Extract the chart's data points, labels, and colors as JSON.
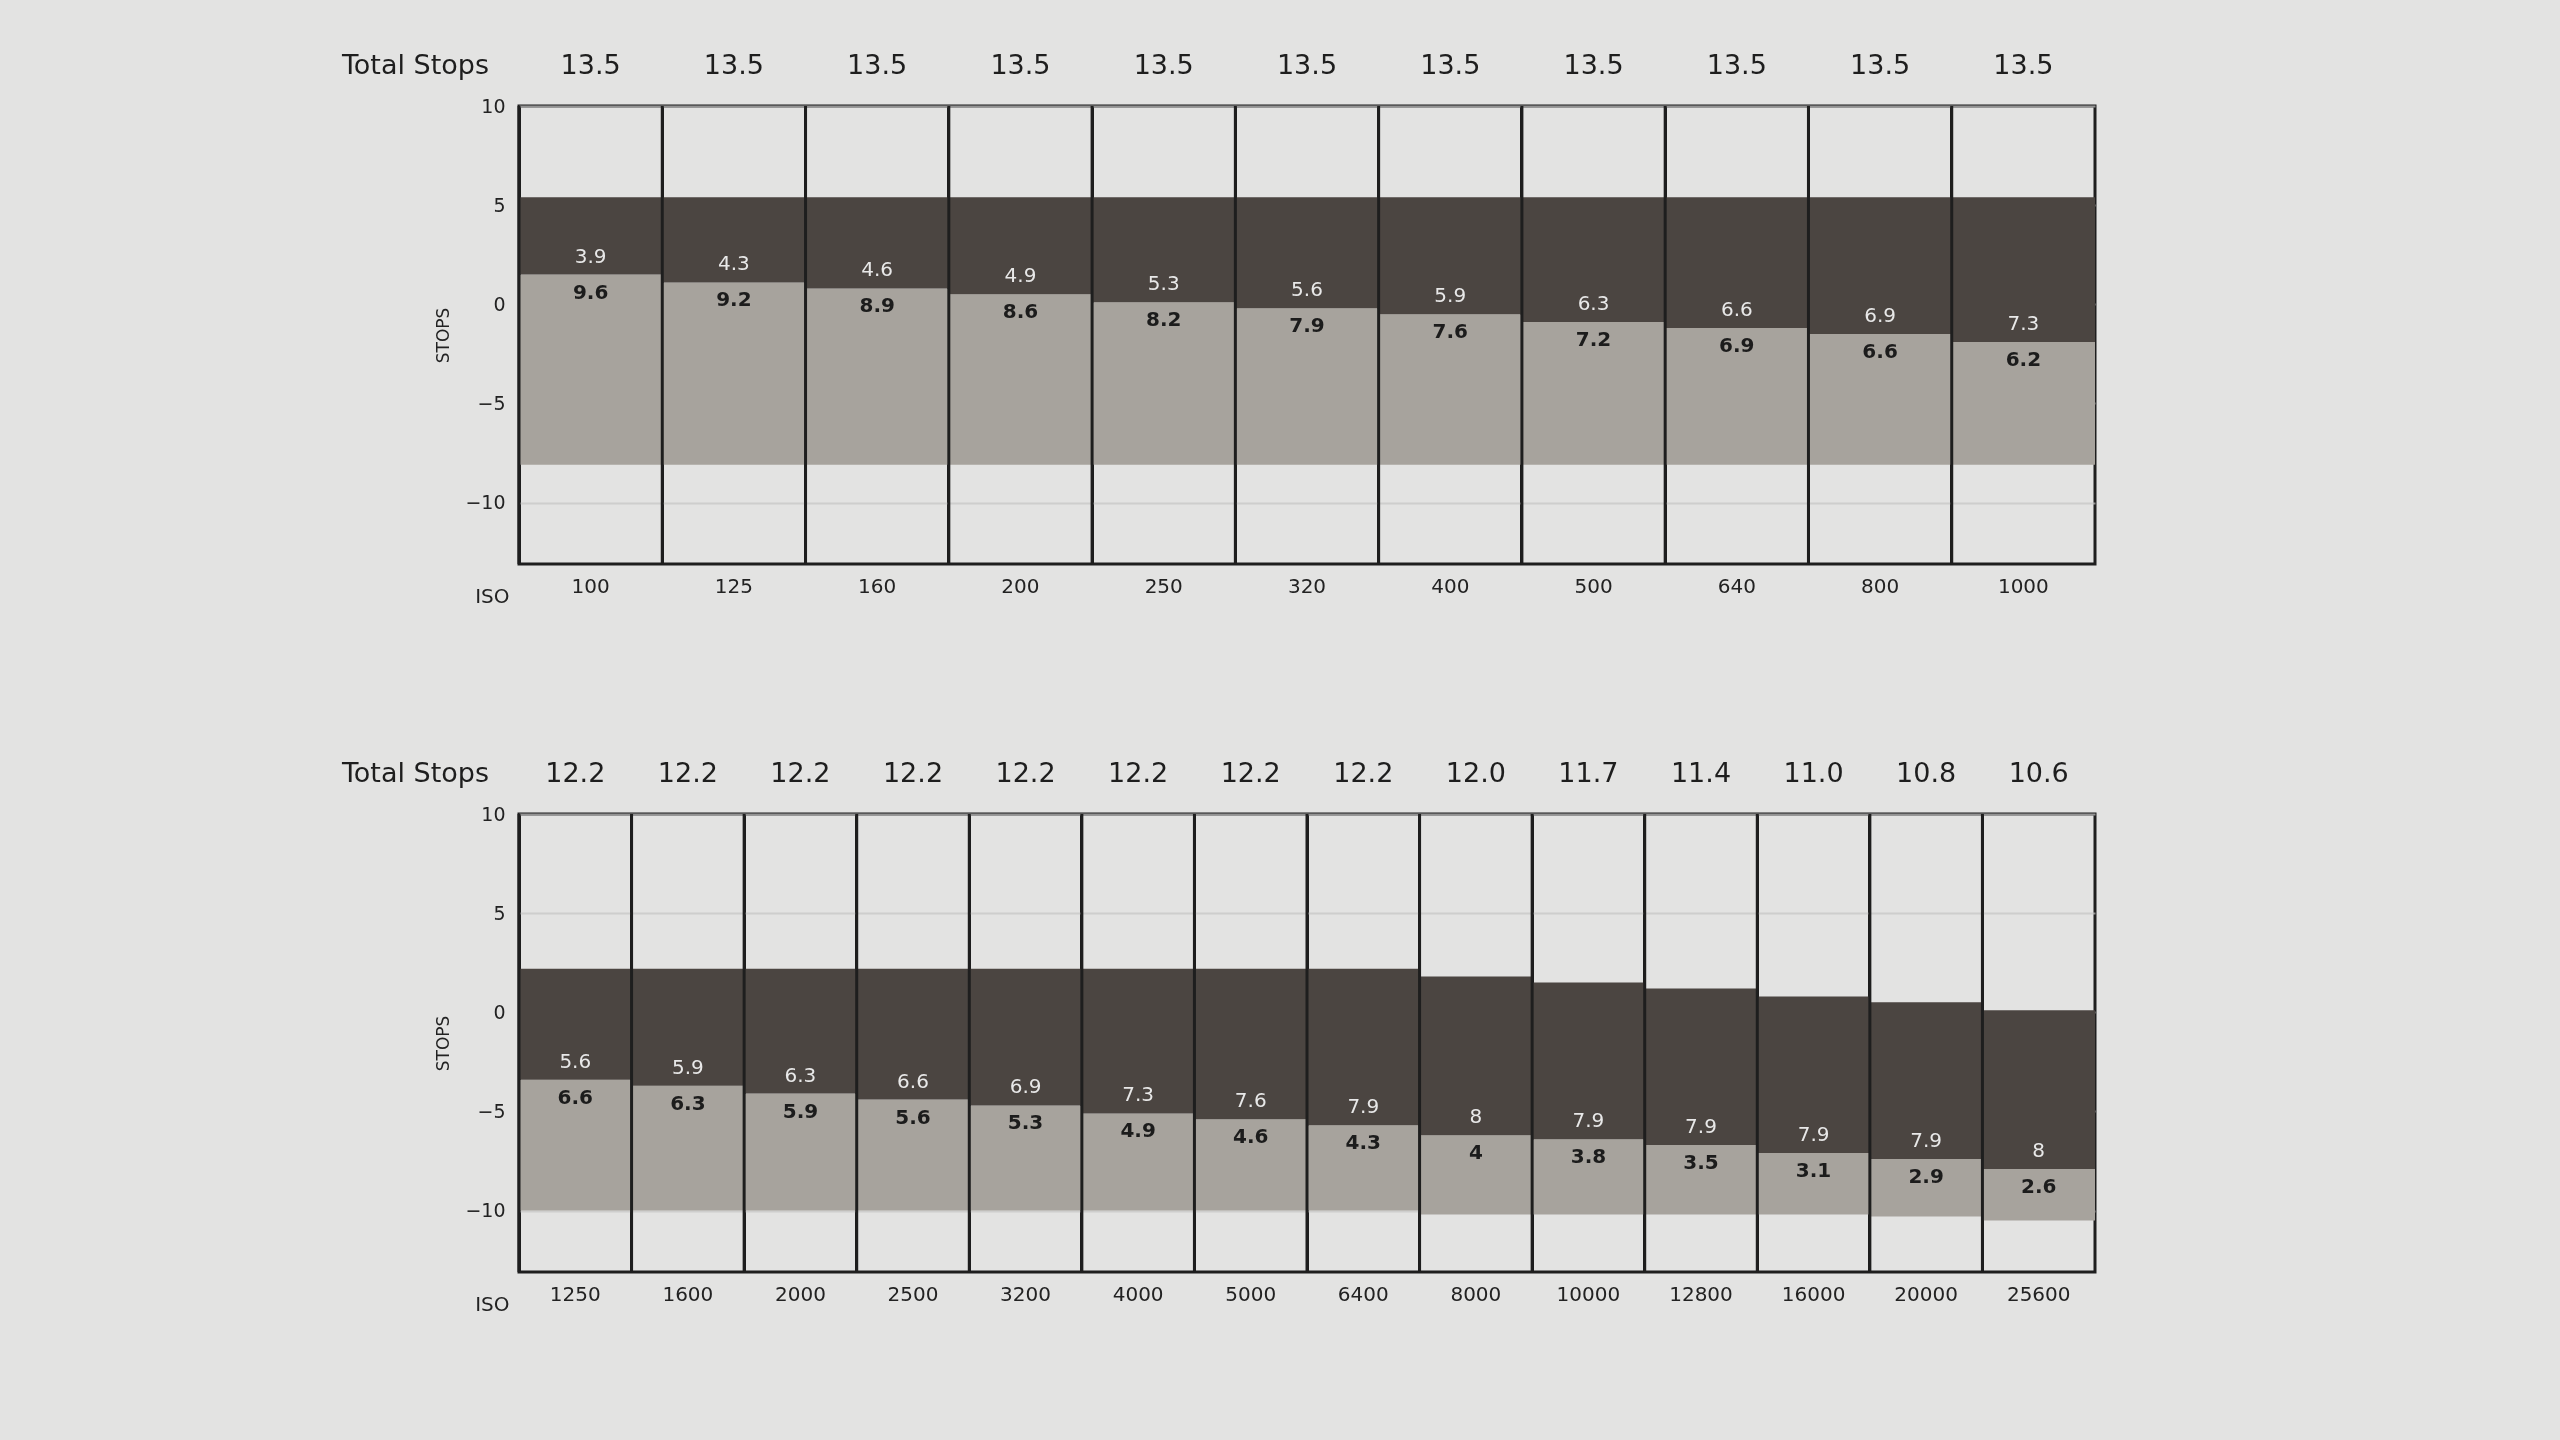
{
  "chart_data": [
    {
      "type": "bar",
      "xlabel": "ISO",
      "ylabel": "STOPS",
      "categories": [
        "100",
        "125",
        "160",
        "200",
        "250",
        "320",
        "400",
        "500",
        "640",
        "800",
        "1000"
      ],
      "series": [
        {
          "color": "#a7a39d",
          "base": [
            -8.1,
            -8.1,
            -8.1,
            -8.1,
            -8.1,
            -8.1,
            -8.1,
            -8.1,
            -8.1,
            -8.1,
            -8.1
          ],
          "values": [
            9.6,
            9.2,
            8.9,
            8.6,
            8.2,
            7.9,
            7.6,
            7.2,
            6.9,
            6.6,
            6.2
          ]
        },
        {
          "color": "#4b4541",
          "base": [
            1.5,
            1.1,
            0.8,
            0.5,
            0.1,
            -0.2,
            -0.5,
            -0.9,
            -1.2,
            -1.5,
            -1.9
          ],
          "values": [
            3.9,
            4.3,
            4.6,
            4.9,
            5.3,
            5.6,
            5.9,
            6.3,
            6.6,
            6.9,
            7.3
          ]
        }
      ],
      "annotations": [
        "Total Stops",
        "13.5",
        "13.5",
        "13.5",
        "13.5",
        "13.5",
        "13.5",
        "13.5",
        "13.5",
        "13.5",
        "13.5",
        "13.5"
      ],
      "ylim": [
        -13.1,
        10
      ],
      "yticks": [
        -10,
        -5,
        0,
        5,
        10
      ],
      "grid": true,
      "data_labels": true
    },
    {
      "type": "bar",
      "xlabel": "ISO",
      "ylabel": "STOPS",
      "categories": [
        "1250",
        "1600",
        "2000",
        "2500",
        "3200",
        "4000",
        "5000",
        "6400",
        "8000",
        "10000",
        "12800",
        "16000",
        "20000",
        "25600"
      ],
      "series": [
        {
          "color": "#a7a39d",
          "base": [
            -10,
            -10,
            -10,
            -10,
            -10,
            -10,
            -10,
            -10,
            -10.2,
            -10.2,
            -10.2,
            -10.2,
            -10.3,
            -10.5
          ],
          "values": [
            6.6,
            6.3,
            5.9,
            5.6,
            5.3,
            4.9,
            4.6,
            4.3,
            4,
            3.8,
            3.5,
            3.1,
            2.9,
            2.6
          ]
        },
        {
          "color": "#4b4541",
          "base": [
            -3.4,
            -3.7,
            -4.1,
            -4.4,
            -4.7,
            -5.1,
            -5.4,
            -5.7,
            -6.2,
            -6.4,
            -6.7,
            -7.1,
            -7.4,
            -7.9
          ],
          "values": [
            5.6,
            5.9,
            6.3,
            6.6,
            6.9,
            7.3,
            7.6,
            7.9,
            8,
            7.9,
            7.9,
            7.9,
            7.9,
            8
          ]
        }
      ],
      "annotations": [
        "Total Stops",
        "12.2",
        "12.2",
        "12.2",
        "12.2",
        "12.2",
        "12.2",
        "12.2",
        "12.2",
        "12.0",
        "11.7",
        "11.4",
        "11.0",
        "10.8",
        "10.6"
      ],
      "ylim": [
        -13.1,
        10
      ],
      "yticks": [
        -10,
        -5,
        0,
        5,
        10
      ],
      "grid": true,
      "data_labels": true
    }
  ]
}
